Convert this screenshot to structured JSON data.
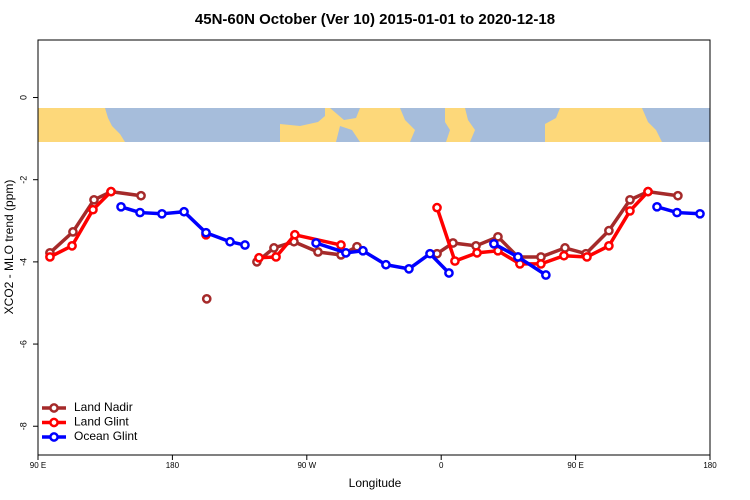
{
  "chart_data": {
    "type": "line",
    "title": "45N-60N October (Ver 10)   2015-01-01 to 2020-12-18",
    "xlabel": "Longitude",
    "ylabel": "XCO2 - MLO trend (ppm)",
    "xlim": [
      90,
      540
    ],
    "ylim": [
      -8.7,
      1.4
    ],
    "xticks": [
      {
        "value": 90,
        "label": "90 E"
      },
      180,
      {
        "value": 270,
        "label": "90 W"
      },
      {
        "value": 360,
        "label": "0"
      },
      {
        "value": 450,
        "label": "90 E"
      },
      {
        "value": 540,
        "label": "180"
      }
    ],
    "yticks": [
      0,
      -2,
      -4,
      -6,
      -8
    ],
    "legend": "bottom-left",
    "series": [
      {
        "name": "Land Nadir",
        "color": "#a52a2a",
        "x": [
          98,
          113.4,
          127.5,
          138.9,
          159,
          null,
          203,
          null,
          236.6,
          248,
          261.4,
          277.5,
          292.9,
          303.6,
          null,
          357.2,
          367.9,
          383.3,
          398,
          411.4,
          426.8,
          442.9,
          456.9,
          472.3,
          486.4,
          498.5,
          518.5
        ],
        "values": [
          -3.78,
          -3.27,
          -2.49,
          -2.29,
          -2.39,
          null,
          -4.9,
          null,
          -4.0,
          -3.66,
          -3.51,
          -3.76,
          -3.83,
          -3.63,
          null,
          -3.8,
          -3.54,
          -3.61,
          -3.39,
          -3.88,
          -3.88,
          -3.66,
          -3.8,
          -3.24,
          -2.49,
          -2.29,
          -2.39
        ]
      },
      {
        "name": "Land Glint",
        "color": "#ff0000",
        "x": [
          98,
          112.8,
          126.8,
          138.9,
          null,
          202.5,
          null,
          238,
          249.4,
          262,
          292.9,
          null,
          357.2,
          369.2,
          384,
          398,
          412.7,
          426.8,
          442.2,
          457.6,
          472.3,
          486.4,
          498.5
        ],
        "values": [
          -3.88,
          -3.61,
          -2.73,
          -2.29,
          null,
          -3.34,
          null,
          -3.9,
          -3.88,
          -3.34,
          -3.59,
          null,
          -2.68,
          -3.98,
          -3.78,
          -3.73,
          -4.05,
          -4.05,
          -3.85,
          -3.88,
          -3.61,
          -2.76,
          -2.29
        ]
      },
      {
        "name": "Ocean Glint",
        "color": "#0000ff",
        "x": [
          145.6,
          158.3,
          173,
          187.8,
          202.5,
          218.6,
          228.6,
          null,
          276.2,
          296.2,
          307.6,
          323,
          338.4,
          352.5,
          365.2,
          null,
          395.3,
          411.4,
          430.1,
          null,
          504.5,
          517.9,
          533.3
        ],
        "values": [
          -2.66,
          -2.8,
          -2.83,
          -2.78,
          -3.29,
          -3.51,
          -3.59,
          null,
          -3.54,
          -3.78,
          -3.73,
          -4.07,
          -4.17,
          -3.8,
          -4.27,
          null,
          -3.56,
          -3.88,
          -4.32,
          null,
          -2.66,
          -2.8,
          -2.83
        ]
      }
    ]
  }
}
